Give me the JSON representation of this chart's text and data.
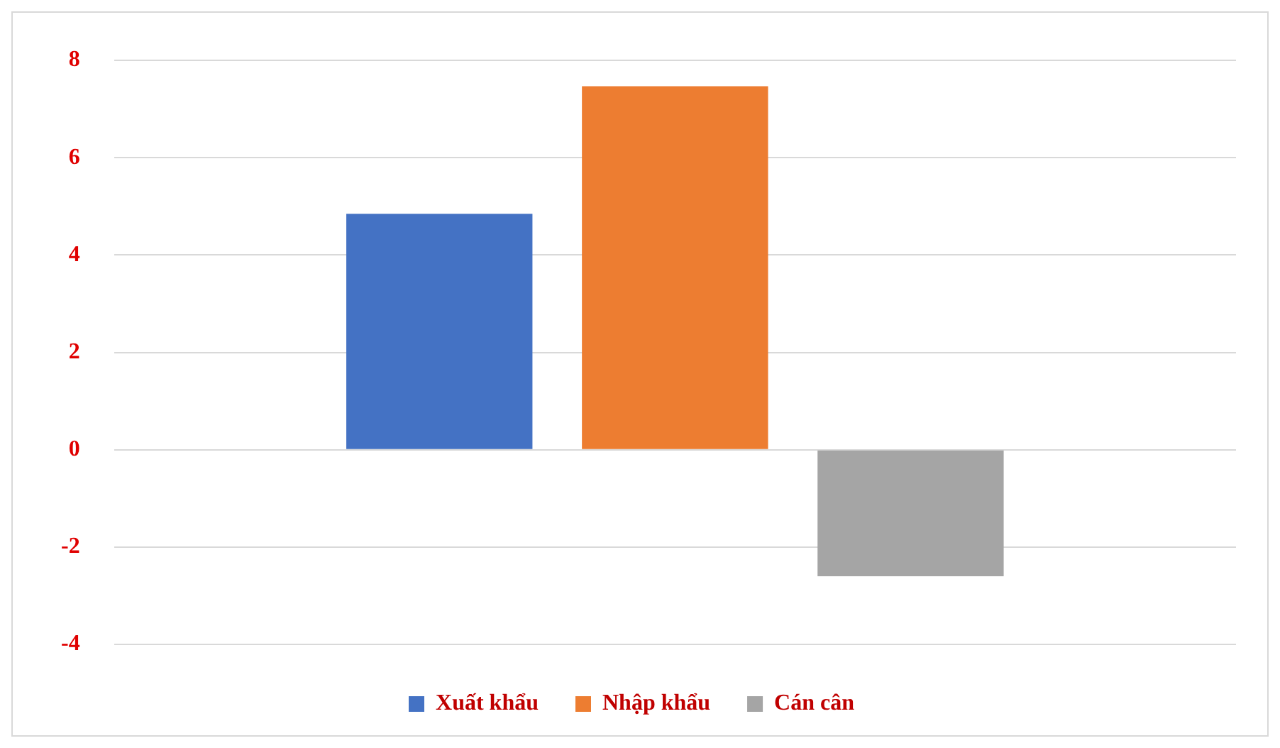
{
  "chart_data": {
    "type": "bar",
    "categories": [
      null
    ],
    "series": [
      {
        "name": "Xuất khẩu",
        "color": "#4472c4",
        "values": [
          4.85
        ]
      },
      {
        "name": "Nhập khẩu",
        "color": "#ed7d31",
        "values": [
          7.47
        ]
      },
      {
        "name": "Cán cân",
        "color": "#a5a5a5",
        "values": [
          -2.6
        ]
      }
    ],
    "ylim": [
      -4,
      8
    ],
    "yticks": [
      -4,
      -2,
      0,
      2,
      4,
      6,
      8
    ],
    "grid": "y",
    "legend": "bottom",
    "tick_labels": "y"
  }
}
